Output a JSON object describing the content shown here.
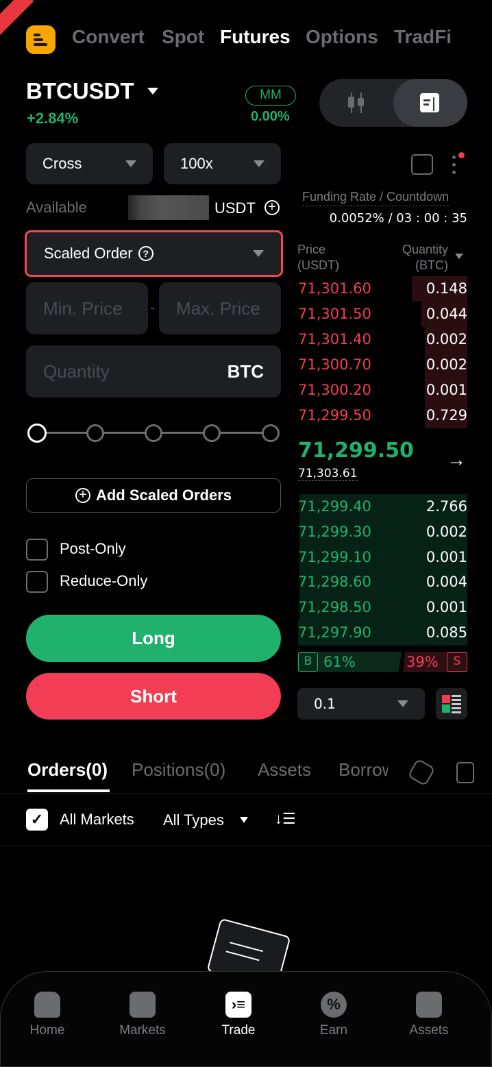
{
  "top_tabs": [
    "Convert",
    "Spot",
    "Futures",
    "Options",
    "TradFi"
  ],
  "active_top_tab": "Futures",
  "symbol": {
    "name": "BTCUSDT",
    "change": "+2.84%",
    "mm_label": "MM",
    "mm_value": "0.00%"
  },
  "margin_mode": "Cross",
  "leverage": "100x",
  "available": {
    "label": "Available",
    "currency": "USDT"
  },
  "funding": {
    "label": "Funding Rate / Countdown",
    "value": "0.0052% / 03 : 00 : 35"
  },
  "order_type": "Scaled Order",
  "inputs": {
    "min_price_placeholder": "Min. Price",
    "max_price_placeholder": "Max. Price",
    "quantity_placeholder": "Quantity",
    "quantity_unit": "BTC",
    "separator": "-"
  },
  "slider": {
    "value_percent": 0,
    "steps": [
      0,
      25,
      50,
      75,
      100
    ]
  },
  "add_scaled_label": "Add Scaled Orders",
  "options": [
    {
      "label": "Post-Only",
      "checked": false
    },
    {
      "label": "Reduce-Only",
      "checked": false
    }
  ],
  "long_label": "Long",
  "short_label": "Short",
  "orderbook": {
    "price_header": "Price\n(USDT)",
    "price_header_1": "Price",
    "price_header_2": "(USDT)",
    "qty_header_1": "Quantity",
    "qty_header_2": "(BTC)",
    "asks": [
      {
        "price": "71,301.60",
        "qty": "0.148",
        "depth": 0.33
      },
      {
        "price": "71,301.50",
        "qty": "0.044",
        "depth": 0.27
      },
      {
        "price": "71,301.40",
        "qty": "0.002",
        "depth": 0.25
      },
      {
        "price": "71,300.70",
        "qty": "0.002",
        "depth": 0.25
      },
      {
        "price": "71,300.20",
        "qty": "0.001",
        "depth": 0.25
      },
      {
        "price": "71,299.50",
        "qty": "0.729",
        "depth": 0.25
      }
    ],
    "last_price": "71,299.50",
    "mark_price": "71,303.61",
    "bids": [
      {
        "price": "71,299.40",
        "qty": "2.766",
        "depth": 0.99
      },
      {
        "price": "71,299.30",
        "qty": "0.002",
        "depth": 0.99
      },
      {
        "price": "71,299.10",
        "qty": "0.001",
        "depth": 0.99
      },
      {
        "price": "71,298.60",
        "qty": "0.004",
        "depth": 0.99
      },
      {
        "price": "71,298.50",
        "qty": "0.001",
        "depth": 0.99
      },
      {
        "price": "71,297.90",
        "qty": "0.085",
        "depth": 1.0
      }
    ],
    "buy_label": "B",
    "buy_pct": "61%",
    "sell_pct": "39%",
    "sell_label": "S",
    "precision": "0.1"
  },
  "bottom_tabs": [
    "Orders(0)",
    "Positions(0)",
    "Assets",
    "Borrow"
  ],
  "filters": {
    "all_markets": "All Markets",
    "all_types": "All Types"
  },
  "nav": [
    "Home",
    "Markets",
    "Trade",
    "Earn",
    "Assets"
  ],
  "active_nav": "Trade",
  "colors": {
    "green": "#20b26c",
    "red": "#f23d54",
    "brand": "#f7a600",
    "highlight": "#f0494f"
  }
}
